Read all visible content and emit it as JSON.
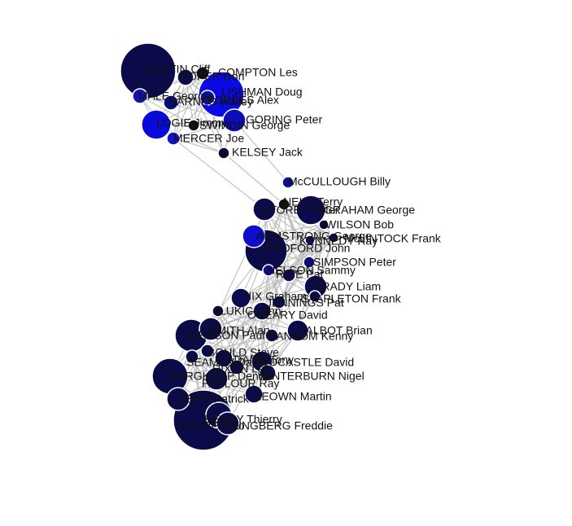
{
  "graph": {
    "type": "force-directed network",
    "nodes": [
      {
        "id": "BASTIN Cliff",
        "color": "#0b0b4a",
        "group": "top"
      },
      {
        "id": "COMPTON Les",
        "color": "#111111",
        "group": "top"
      },
      {
        "id": "ROPER Don",
        "color": "#0b0b4a",
        "group": "top"
      },
      {
        "id": "LISHMAN Doug",
        "color": "#0a0ae6",
        "group": "top"
      },
      {
        "id": "MALE George",
        "color": "#1414b0",
        "group": "top"
      },
      {
        "id": "FORBES Alex",
        "color": "#1010a8",
        "group": "top"
      },
      {
        "id": "BARNES Walley",
        "color": "#0c0c78",
        "group": "top"
      },
      {
        "id": "LOGIE Jimmy",
        "color": "#0a0ad8",
        "group": "top"
      },
      {
        "id": "GORING Peter",
        "color": "#0c0cb8",
        "group": "top"
      },
      {
        "id": "SWINDIN George",
        "color": "#111111",
        "group": "top"
      },
      {
        "id": "MERCER Joe",
        "color": "#1212c8",
        "group": "top"
      },
      {
        "id": "KELSEY Jack",
        "color": "#0a0a30",
        "group": "top"
      },
      {
        "id": "McCULLOUGH Billy",
        "color": "#0c0c8c",
        "group": "mid"
      },
      {
        "id": "NEILL Terry",
        "color": "#111111",
        "group": "mid"
      },
      {
        "id": "STOREY Peter",
        "color": "#0b0b4a",
        "group": "mid"
      },
      {
        "id": "GRAHAM George",
        "color": "#0b0b50",
        "group": "mid"
      },
      {
        "id": "WILSON Bob",
        "color": "#0a0a30",
        "group": "mid"
      },
      {
        "id": "McLINTOCK Frank",
        "color": "#0b0b4a",
        "group": "mid"
      },
      {
        "id": "ARMSTRONG George",
        "color": "#0e0ec8",
        "group": "mid"
      },
      {
        "id": "KENNEDY Ray",
        "color": "#0c0c70",
        "group": "mid"
      },
      {
        "id": "RADFORD John",
        "color": "#0b0b4a",
        "group": "mid"
      },
      {
        "id": "RICE Pat",
        "color": "#0b0b50",
        "group": "mid"
      },
      {
        "id": "SIMPSON Peter",
        "color": "#0c0c70",
        "group": "mid"
      },
      {
        "id": "NELSON Sammy",
        "color": "#0c0c8c",
        "group": "mid"
      },
      {
        "id": "BRADY Liam",
        "color": "#0b0b4a",
        "group": "mid"
      },
      {
        "id": "STAPLETON Frank",
        "color": "#0b0b4a",
        "group": "mid"
      },
      {
        "id": "JENNINGS Pat",
        "color": "#0b0b50",
        "group": "mid"
      },
      {
        "id": "HIX Graham",
        "color": "#0b0b50",
        "group": "low"
      },
      {
        "id": "LUKIC John",
        "color": "#0a0a30",
        "group": "low"
      },
      {
        "id": "O'LEARY David",
        "color": "#0b0b4a",
        "group": "low"
      },
      {
        "id": "SMITH Alan",
        "color": "#0b0b4a",
        "group": "low"
      },
      {
        "id": "MERSON Paul",
        "color": "#0b0b4a",
        "group": "low"
      },
      {
        "id": "TALBOT Brian",
        "color": "#0b0b4a",
        "group": "low"
      },
      {
        "id": "SANSOM Kenny",
        "color": "#0b0b4a",
        "group": "low"
      },
      {
        "id": "BOULD Steve",
        "color": "#0b0b4a",
        "group": "low"
      },
      {
        "id": "SEAMAN David",
        "color": "#0b0b4a",
        "group": "low"
      },
      {
        "id": "ADAMS Tony",
        "color": "#0b0b4a",
        "group": "low"
      },
      {
        "id": "ROCASTLE David",
        "color": "#0b0b4a",
        "group": "low"
      },
      {
        "id": "DIXON Lee",
        "color": "#0b0b4a",
        "group": "low"
      },
      {
        "id": "WINTERBURN Nigel",
        "color": "#0b0b4a",
        "group": "low"
      },
      {
        "id": "BERGKAMP Dennis",
        "color": "#0b0b4a",
        "group": "low"
      },
      {
        "id": "PARLOUR Ray",
        "color": "#0b0b4a",
        "group": "low"
      },
      {
        "id": "KEOWN Martin",
        "color": "#0b0b4a",
        "group": "low"
      },
      {
        "id": "VIEIRA Patrick",
        "color": "#0b0b4a",
        "group": "low"
      },
      {
        "id": "HENRY Thierry",
        "color": "#0b0b4a",
        "group": "low"
      },
      {
        "id": "TOURE Kolo",
        "color": "#0b0b4a",
        "group": "low"
      },
      {
        "id": "LJUNGBERG Freddie",
        "color": "#0b0b4a",
        "group": "low"
      }
    ]
  }
}
